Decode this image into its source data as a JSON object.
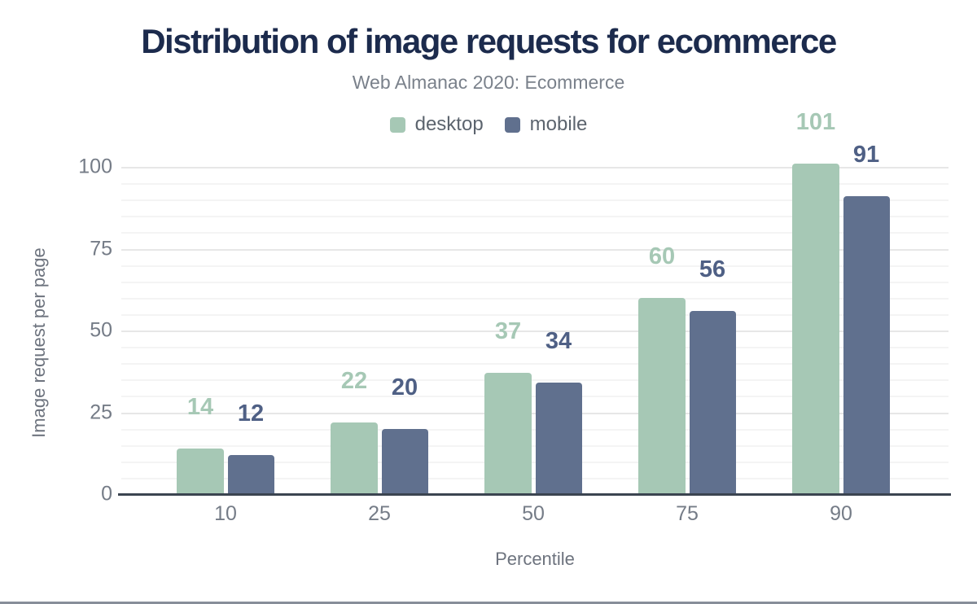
{
  "chart_data": {
    "type": "bar",
    "title": "Distribution of image requests for ecommerce",
    "subtitle": "Web Almanac 2020: Ecommerce",
    "xlabel": "Percentile",
    "ylabel": "Image request per page",
    "categories": [
      "10",
      "25",
      "50",
      "75",
      "90"
    ],
    "series": [
      {
        "name": "desktop",
        "values": [
          14,
          22,
          37,
          60,
          101
        ],
        "color": "#a6c8b5",
        "label_color": "#a6c8b5"
      },
      {
        "name": "mobile",
        "values": [
          12,
          20,
          34,
          56,
          91
        ],
        "color": "#60708e",
        "label_color": "#4f6085"
      }
    ],
    "ylim": [
      0,
      105
    ],
    "yticks": [
      0,
      25,
      50,
      75,
      100
    ],
    "minor_grid_step": 5,
    "grid": "on",
    "legend_position": "top",
    "title_color": "#1c2b4d",
    "axis_line_color": "#3b4450"
  }
}
